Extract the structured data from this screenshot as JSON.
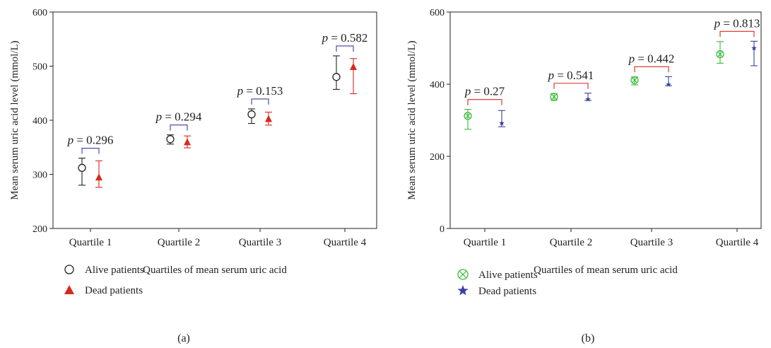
{
  "chart_data": [
    {
      "type": "scatter",
      "panel_label": "(a)",
      "xlabel": "Quartiles of mean serum uric acid",
      "ylabel": "Mean serum uric acid level (mmol/L)",
      "categories": [
        "Quartile 1",
        "Quartile 2",
        "Quartile 3",
        "Quartile 4"
      ],
      "ylim": [
        200,
        600
      ],
      "yticks": [
        200,
        300,
        400,
        500,
        600
      ],
      "series": [
        {
          "name": "Alive patients",
          "marker": "circle",
          "color": "#222222",
          "values": [
            312,
            365,
            411,
            480
          ],
          "lower": [
            280,
            356,
            394,
            457
          ],
          "upper": [
            330,
            373,
            421,
            519
          ]
        },
        {
          "name": "Dead patients",
          "marker": "triangle",
          "color": "#d62b20",
          "values": [
            294,
            359,
            402,
            498
          ],
          "lower": [
            276,
            349,
            391,
            449
          ],
          "upper": [
            325,
            371,
            415,
            514
          ]
        }
      ],
      "p_values": [
        "0.296",
        "0.294",
        "0.153",
        "0.582"
      ],
      "bracket_color": "#3a3fa0",
      "legend_position": "bottom-left"
    },
    {
      "type": "scatter",
      "panel_label": "(b)",
      "xlabel": "Quartiles of mean serum uric acid",
      "ylabel": "Mean serum uric acid level (mmol/L)",
      "categories": [
        "Quartile 1",
        "Quartile 2",
        "Quartile 3",
        "Quartile 4"
      ],
      "ylim": [
        0,
        600
      ],
      "yticks": [
        0,
        200,
        400,
        600
      ],
      "series": [
        {
          "name": "Alive patients",
          "marker": "circle-x",
          "color": "#3cb83c",
          "values": [
            312,
            365,
            411,
            483
          ],
          "lower": [
            275,
            355,
            398,
            458
          ],
          "upper": [
            330,
            374,
            420,
            518
          ]
        },
        {
          "name": "Dead patients",
          "marker": "star",
          "color": "#3a3fa0",
          "values": [
            292,
            358,
            399,
            500
          ],
          "lower": [
            282,
            355,
            396,
            451
          ],
          "upper": [
            327,
            375,
            421,
            519
          ]
        }
      ],
      "p_values": [
        "0.27",
        "0.541",
        "0.442",
        "0.813"
      ],
      "bracket_color": "#d62b20",
      "legend_position": "bottom-left"
    }
  ]
}
